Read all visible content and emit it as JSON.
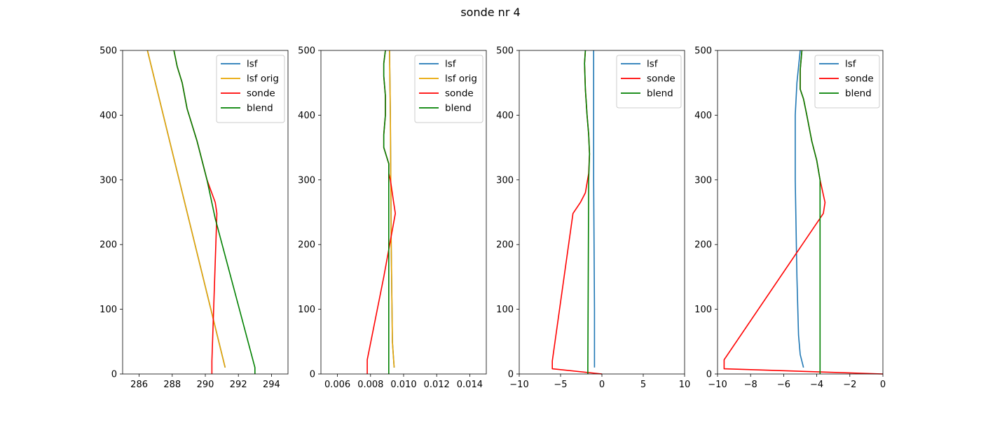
{
  "figure": {
    "title": "sonde nr 4"
  },
  "colors": {
    "lsf": "#1f77b4",
    "lsf orig": "#e8a400",
    "sonde": "#ff0000",
    "blend": "#008000"
  },
  "chart_data": [
    {
      "type": "line",
      "title": "",
      "xlabel": "",
      "ylabel": "",
      "xlim": [
        285,
        295
      ],
      "ylim": [
        0,
        500
      ],
      "xticks": [
        286,
        288,
        290,
        292,
        294
      ],
      "yticks": [
        0,
        100,
        200,
        300,
        400,
        500
      ],
      "legend": "top-right",
      "series": [
        {
          "name": "lsf",
          "x": [
            291.2,
            286.5
          ],
          "y": [
            10,
            500
          ]
        },
        {
          "name": "lsf orig",
          "x": [
            291.2,
            286.5
          ],
          "y": [
            10,
            500
          ]
        },
        {
          "name": "sonde",
          "x": [
            290.4,
            290.4,
            290.7,
            290.6,
            290.1,
            289.5,
            288.9,
            288.6,
            288.3,
            288.1
          ],
          "y": [
            0,
            20,
            248,
            265,
            300,
            360,
            410,
            450,
            475,
            500
          ]
        },
        {
          "name": "blend",
          "x": [
            293.0,
            293.0,
            290.6,
            290.1,
            289.5,
            288.9,
            288.6,
            288.3,
            288.1
          ],
          "y": [
            0,
            10,
            240,
            300,
            360,
            410,
            450,
            475,
            500
          ]
        }
      ]
    },
    {
      "type": "line",
      "title": "",
      "xlabel": "",
      "ylabel": "",
      "xlim": [
        0.005,
        0.015
      ],
      "ylim": [
        0,
        500
      ],
      "xticks": [
        0.006,
        0.008,
        0.01,
        0.012,
        0.014
      ],
      "yticks": [
        0,
        100,
        200,
        300,
        400,
        500
      ],
      "legend": "top-right",
      "series": [
        {
          "name": "lsf",
          "x": [
            0.00943,
            0.00932,
            0.00925,
            0.0092,
            0.00915
          ],
          "y": [
            10,
            50,
            200,
            400,
            500
          ]
        },
        {
          "name": "lsf orig",
          "x": [
            0.00943,
            0.00932,
            0.00925,
            0.0092,
            0.00915
          ],
          "y": [
            10,
            50,
            200,
            400,
            500
          ]
        },
        {
          "name": "sonde",
          "x": [
            0.0078,
            0.0078,
            0.0088,
            0.0095,
            0.0094,
            0.0092,
            0.0091,
            0.0091,
            0.0088,
            0.0088,
            0.0089,
            0.0089,
            0.0088,
            0.0088,
            0.0089
          ],
          "y": [
            0,
            22,
            150,
            248,
            265,
            300,
            310,
            325,
            350,
            370,
            400,
            430,
            460,
            480,
            500
          ]
        },
        {
          "name": "blend",
          "x": [
            0.0091,
            0.0091,
            0.0091,
            0.0091,
            0.0088,
            0.0088,
            0.0089,
            0.0089,
            0.0088,
            0.0088,
            0.0089
          ],
          "y": [
            0,
            10,
            300,
            325,
            350,
            370,
            400,
            430,
            460,
            480,
            500
          ]
        }
      ]
    },
    {
      "type": "line",
      "title": "",
      "xlabel": "",
      "ylabel": "",
      "xlim": [
        -10,
        10
      ],
      "ylim": [
        0,
        500
      ],
      "xticks": [
        -10,
        -5,
        0,
        5,
        10
      ],
      "yticks": [
        0,
        100,
        200,
        300,
        400,
        500
      ],
      "legend": "top-right",
      "series": [
        {
          "name": "lsf",
          "x": [
            -0.9,
            -0.9,
            -1.0,
            -1.0,
            -1.0
          ],
          "y": [
            10,
            100,
            300,
            450,
            500
          ]
        },
        {
          "name": "sonde",
          "x": [
            0.0,
            -6.0,
            -6.0,
            -3.5,
            -2.6,
            -2.0,
            -1.6,
            -1.5,
            -1.6,
            -1.8,
            -2.0,
            -2.1,
            -2.0
          ],
          "y": [
            0,
            8,
            20,
            248,
            265,
            280,
            310,
            340,
            370,
            400,
            440,
            480,
            500
          ]
        },
        {
          "name": "blend",
          "x": [
            -1.7,
            -1.7,
            -1.6,
            -1.5,
            -1.6,
            -1.8,
            -2.0,
            -2.1,
            -2.0
          ],
          "y": [
            0,
            10,
            300,
            340,
            370,
            400,
            440,
            480,
            500
          ]
        }
      ]
    },
    {
      "type": "line",
      "title": "",
      "xlabel": "",
      "ylabel": "",
      "xlim": [
        -10,
        0
      ],
      "ylim": [
        0,
        500
      ],
      "xticks": [
        -10,
        -8,
        -6,
        -4,
        -2,
        0
      ],
      "yticks": [
        0,
        100,
        200,
        300,
        400,
        500
      ],
      "legend": "top-right",
      "series": [
        {
          "name": "lsf",
          "x": [
            -4.8,
            -5.0,
            -5.1,
            -5.2,
            -5.3,
            -5.3,
            -5.2,
            -5.0
          ],
          "y": [
            10,
            30,
            60,
            150,
            300,
            400,
            450,
            500
          ]
        },
        {
          "name": "sonde",
          "x": [
            0.0,
            -9.6,
            -9.6,
            -3.6,
            -3.5,
            -3.8,
            -4.0,
            -4.3,
            -4.6,
            -4.8,
            -5.0,
            -5.0,
            -4.9
          ],
          "y": [
            0,
            8,
            22,
            248,
            265,
            300,
            330,
            360,
            400,
            425,
            440,
            470,
            500
          ]
        },
        {
          "name": "blend",
          "x": [
            -3.8,
            -3.8,
            -3.8,
            -4.0,
            -4.3,
            -4.6,
            -4.8,
            -5.0,
            -5.0,
            -4.9
          ],
          "y": [
            0,
            10,
            300,
            330,
            360,
            400,
            425,
            440,
            470,
            500
          ]
        }
      ]
    }
  ]
}
